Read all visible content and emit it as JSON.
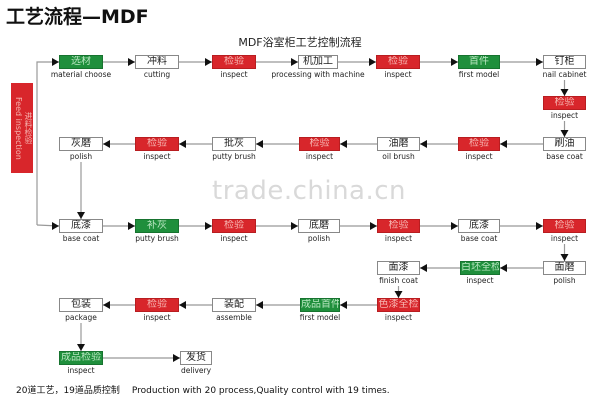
{
  "title": "工艺流程—MDF",
  "subtitle": "MDF浴室柜工艺控制流程",
  "feed_inspection": {
    "cn": "进料检验",
    "en": "Feed inspection"
  },
  "watermark": "trade.china.cn",
  "footer": {
    "cn": "20道工艺，19道品质控制",
    "en": "Production with 20 process,Quality control with 19 times."
  },
  "colors": {
    "inspect": "#d8262b",
    "milestone": "#1f8f3c",
    "process": "#ffffff"
  },
  "nodes": [
    {
      "cn": "选材",
      "en": "material choose",
      "type": "green"
    },
    {
      "cn": "冲料",
      "en": "cutting",
      "type": "white"
    },
    {
      "cn": "检验",
      "en": "inspect",
      "type": "red"
    },
    {
      "cn": "机加工",
      "en": "processing with machine",
      "type": "white"
    },
    {
      "cn": "检验",
      "en": "inspect",
      "type": "red"
    },
    {
      "cn": "首件",
      "en": "first model",
      "type": "green"
    },
    {
      "cn": "钉柜",
      "en": "nail cabinet",
      "type": "white"
    },
    {
      "cn": "检验",
      "en": "inspect",
      "type": "red"
    },
    {
      "cn": "刷油",
      "en": "base coat",
      "type": "white"
    },
    {
      "cn": "检验",
      "en": "inspect",
      "type": "red"
    },
    {
      "cn": "油磨",
      "en": "oil brush",
      "type": "white"
    },
    {
      "cn": "检验",
      "en": "inspect",
      "type": "red"
    },
    {
      "cn": "批灰",
      "en": "putty brush",
      "type": "white"
    },
    {
      "cn": "检验",
      "en": "inspect",
      "type": "red"
    },
    {
      "cn": "灰磨",
      "en": "polish",
      "type": "white"
    },
    {
      "cn": "底漆",
      "en": "base coat",
      "type": "white"
    },
    {
      "cn": "补灰",
      "en": "putty brush",
      "type": "green"
    },
    {
      "cn": "检验",
      "en": "inspect",
      "type": "red"
    },
    {
      "cn": "底磨",
      "en": "polish",
      "type": "white"
    },
    {
      "cn": "检验",
      "en": "inspect",
      "type": "red"
    },
    {
      "cn": "底漆",
      "en": "base coat",
      "type": "white"
    },
    {
      "cn": "检验",
      "en": "inspect",
      "type": "red"
    },
    {
      "cn": "面磨",
      "en": "polish",
      "type": "white"
    },
    {
      "cn": "白坯全检",
      "en": "inspect",
      "type": "green"
    },
    {
      "cn": "面漆",
      "en": "finish coat",
      "type": "white"
    },
    {
      "cn": "色漆全检",
      "en": "inspect",
      "type": "red"
    },
    {
      "cn": "成品首件",
      "en": "first model",
      "type": "green"
    },
    {
      "cn": "装配",
      "en": "assemble",
      "type": "white"
    },
    {
      "cn": "检验",
      "en": "inspect",
      "type": "red"
    },
    {
      "cn": "包装",
      "en": "package",
      "type": "white"
    },
    {
      "cn": "成品检验",
      "en": "inspect",
      "type": "green"
    },
    {
      "cn": "发货",
      "en": "delivery",
      "type": "white"
    }
  ]
}
